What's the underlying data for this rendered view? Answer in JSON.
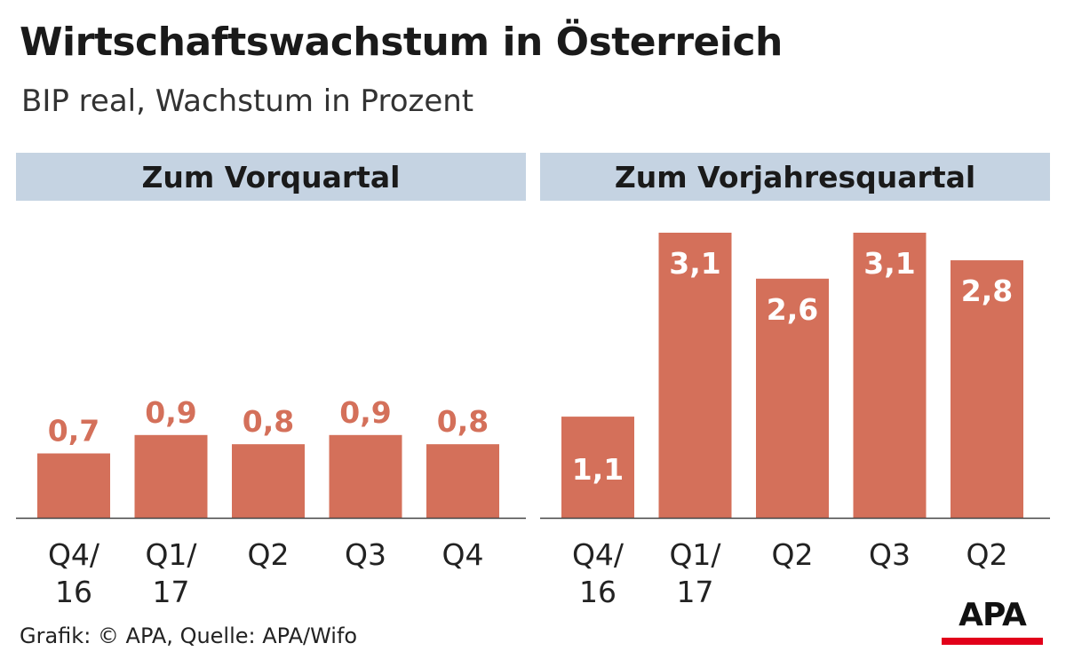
{
  "title": "Wirtschaftswachstum in Österreich",
  "subtitle": "BIP real, Wachstum in Prozent",
  "footer": "Grafik: © APA, Quelle: APA/Wifo",
  "logo": {
    "text": "APA"
  },
  "colors": {
    "bar": "#d4705a",
    "header_bg": "#c5d3e2",
    "label_outside": "#d4705a",
    "label_inside": "#ffffff",
    "axis": "#444444",
    "logo_red": "#e2001a"
  },
  "chart_data": [
    {
      "type": "bar",
      "title": "Zum Vorquartal",
      "categories": [
        [
          "Q4/",
          "16"
        ],
        [
          "Q1/",
          "17"
        ],
        [
          "Q2"
        ],
        [
          "Q3"
        ],
        [
          "Q4"
        ]
      ],
      "values": [
        0.7,
        0.9,
        0.8,
        0.9,
        0.8
      ],
      "value_labels": [
        "0,7",
        "0,9",
        "0,8",
        "0,9",
        "0,8"
      ],
      "ylim": [
        0,
        3.1
      ],
      "grid": false
    },
    {
      "type": "bar",
      "title": "Zum Vorjahresquartal",
      "categories": [
        [
          "Q4/",
          "16"
        ],
        [
          "Q1/",
          "17"
        ],
        [
          "Q2"
        ],
        [
          "Q3"
        ],
        [
          "Q2"
        ]
      ],
      "values": [
        1.1,
        3.1,
        2.6,
        3.1,
        2.8
      ],
      "value_labels": [
        "1,1",
        "3,1",
        "2,6",
        "3,1",
        "2,8"
      ],
      "ylim": [
        0,
        3.1
      ],
      "grid": false
    }
  ]
}
